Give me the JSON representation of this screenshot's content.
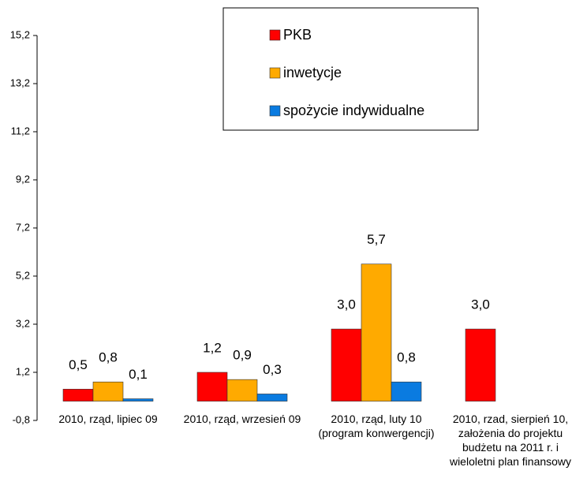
{
  "chart_data": {
    "type": "bar",
    "categories": [
      "2010, rząd, lipiec 09",
      "2010, rząd, wrzesień 09",
      "2010, rząd, luty 10 (program konwergencji)",
      "2010, rzad, sierpień 10, założenia do projektu budżetu na 2011 r. i wieloletni plan finansowy"
    ],
    "series": [
      {
        "name": "PKB",
        "color": "#ff0000",
        "values": [
          0.5,
          1.2,
          3.0,
          3.0
        ],
        "value_labels": [
          "0,5",
          "1,2",
          "3,0",
          "3,0"
        ]
      },
      {
        "name": "inwetycje",
        "color": "#ffaa00",
        "values": [
          0.8,
          0.9,
          5.7,
          null
        ],
        "value_labels": [
          "0,8",
          "0,9",
          "5,7",
          null
        ]
      },
      {
        "name": "spożycie indywidualne",
        "color": "#0a7be0",
        "values": [
          0.1,
          0.3,
          0.8,
          null
        ],
        "value_labels": [
          "0,1",
          "0,3",
          "0,8",
          null
        ]
      }
    ],
    "ylim": [
      -0.8,
      15.2
    ],
    "yticks": [
      {
        "value": -0.8,
        "label": "-0,8"
      },
      {
        "value": 1.2,
        "label": "1,2"
      },
      {
        "value": 3.2,
        "label": "3,2"
      },
      {
        "value": 5.2,
        "label": "5,2"
      },
      {
        "value": 7.2,
        "label": "7,2"
      },
      {
        "value": 9.2,
        "label": "9,2"
      },
      {
        "value": 11.2,
        "label": "11,2"
      },
      {
        "value": 13.2,
        "label": "13,2"
      },
      {
        "value": 15.2,
        "label": "15,2"
      }
    ],
    "grid": false,
    "legend": "top"
  }
}
